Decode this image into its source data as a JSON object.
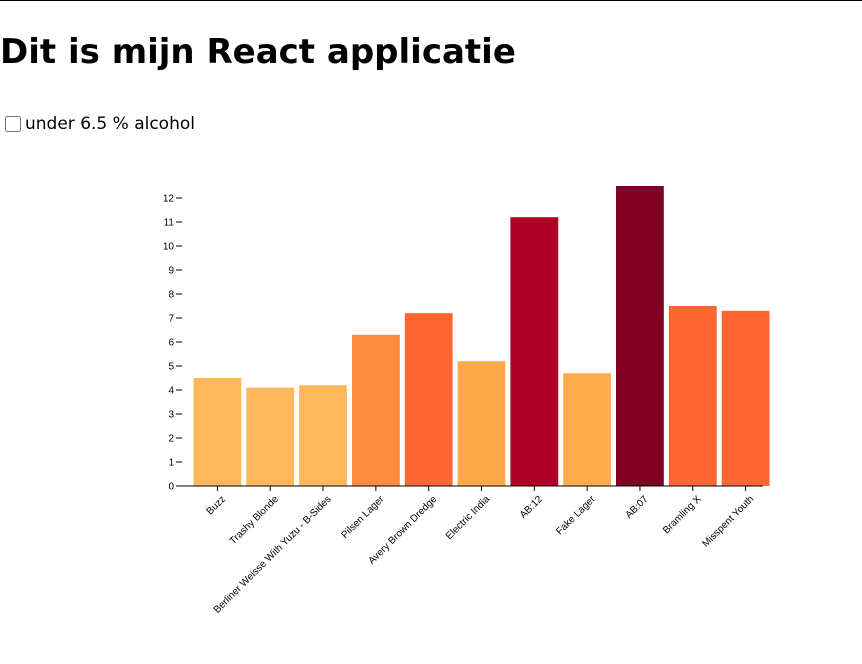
{
  "page": {
    "title": "Dit is mijn React applicatie",
    "filter_label": "under 6.5 % alcohol",
    "filter_checked": false
  },
  "chart_data": {
    "type": "bar",
    "title": "",
    "xlabel": "",
    "ylabel": "",
    "categories": [
      "Buzz",
      "Trashy Blonde",
      "Berliner Weisse With Yuzu - B-Sides",
      "Pilsen Lager",
      "Avery Brown Dredge",
      "Electric India",
      "AB:12",
      "Fake Lager",
      "AB:07",
      "Bramling X",
      "Misspent Youth"
    ],
    "values": [
      4.5,
      4.1,
      4.2,
      6.3,
      7.2,
      5.2,
      11.2,
      4.7,
      12.5,
      7.5,
      7.3
    ],
    "colors": [
      "#feb85a",
      "#feb85a",
      "#feb85a",
      "#fd8c3c",
      "#fd6531",
      "#fea849",
      "#b10026",
      "#feab4b",
      "#800026",
      "#fd6531",
      "#fd6531"
    ],
    "ylim": [
      0,
      12.5
    ],
    "yticks": [
      "0",
      "1",
      "2",
      "3",
      "4",
      "5",
      "6",
      "7",
      "8",
      "9",
      "10",
      "11",
      "12"
    ],
    "grid": false,
    "legend": "none"
  }
}
